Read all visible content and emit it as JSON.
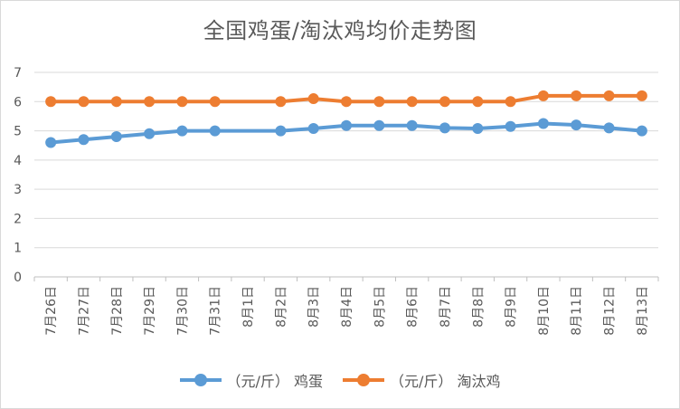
{
  "chart_data": {
    "type": "line",
    "title": "全国鸡蛋/淘汰鸡均价走势图",
    "categories": [
      "7月26日",
      "7月27日",
      "7月28日",
      "7月29日",
      "7月30日",
      "7月31日",
      "8月1日",
      "8月2日",
      "8月3日",
      "8月4日",
      "8月5日",
      "8月6日",
      "8月7日",
      "8月8日",
      "8月9日",
      "8月10日",
      "8月11日",
      "8月12日",
      "8月13日"
    ],
    "ylim": [
      0,
      7
    ],
    "yticks": [
      "0",
      "1",
      "2",
      "3",
      "4",
      "5",
      "6",
      "7"
    ],
    "grid": true,
    "legend_position": "bottom",
    "series": [
      {
        "name": "（元/斤） 鸡蛋",
        "color": "#5b9bd5",
        "values": [
          4.6,
          4.7,
          4.8,
          4.9,
          5.0,
          5.0,
          null,
          5.0,
          5.08,
          5.18,
          5.18,
          5.18,
          5.1,
          5.08,
          5.15,
          5.25,
          5.2,
          5.1,
          5.0
        ]
      },
      {
        "name": "（元/斤） 淘汰鸡",
        "color": "#ed7d31",
        "values": [
          6.0,
          6.0,
          6.0,
          6.0,
          6.0,
          6.0,
          null,
          6.0,
          6.1,
          6.0,
          6.0,
          6.0,
          6.0,
          6.0,
          6.0,
          6.2,
          6.2,
          6.2,
          6.2
        ]
      }
    ]
  }
}
